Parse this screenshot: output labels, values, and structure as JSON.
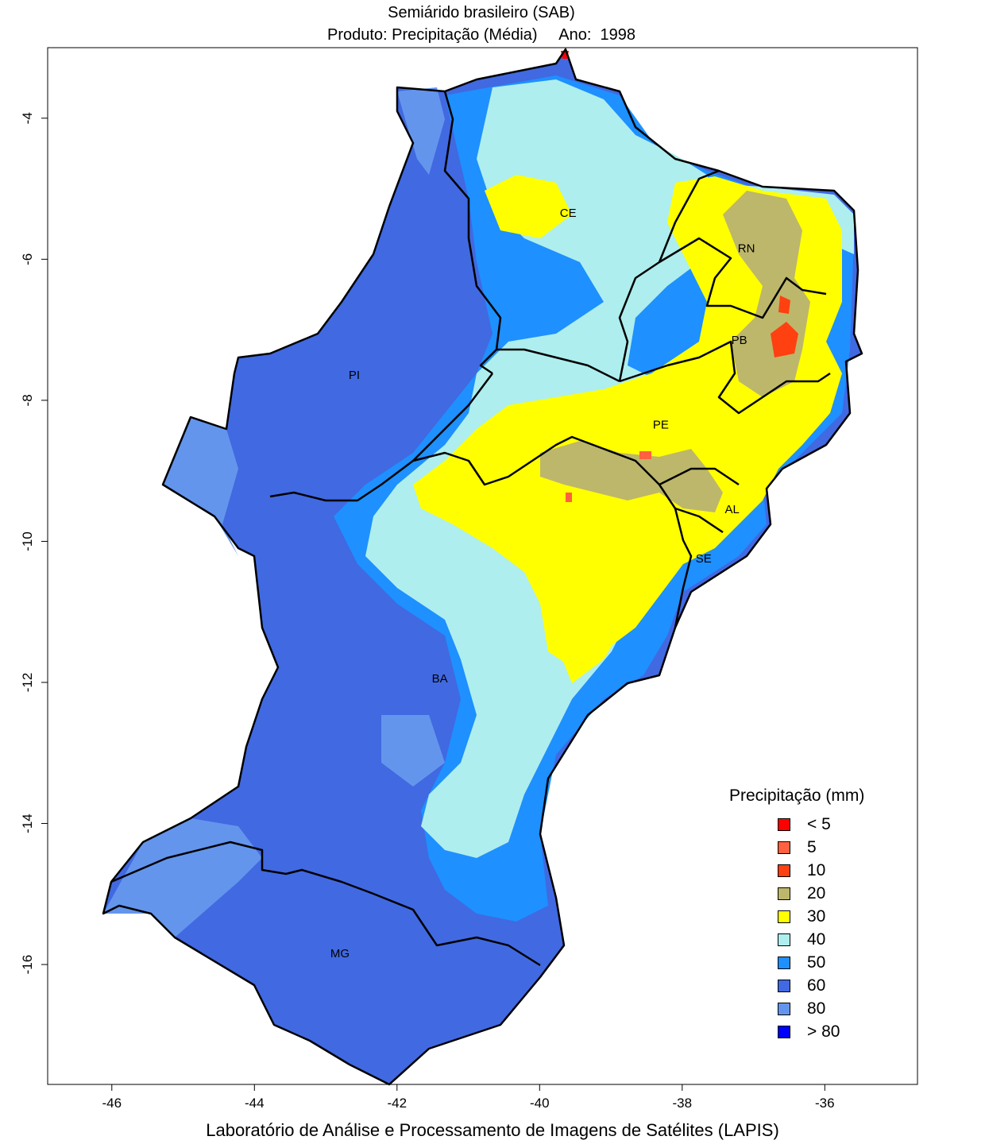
{
  "title": {
    "line1": "Semiárido brasileiro (SAB)",
    "line2_product": "Produto: Precipitação (Média)",
    "line2_year": "Ano:  1998"
  },
  "footer": "Laboratório de Análise e Processamento de Imagens de Satélites (LAPIS)",
  "axes": {
    "x_ticks": [
      "-46",
      "-44",
      "-42",
      "-40",
      "-38",
      "-36"
    ],
    "y_ticks": [
      "-4",
      "-6",
      "-8",
      "-10",
      "-12",
      "-14",
      "-16"
    ],
    "x_range": [
      -46.9,
      -34.7
    ],
    "y_range": [
      -17.7,
      -3.0
    ]
  },
  "states": [
    {
      "label": "CE",
      "lon": -39.6,
      "lat": -5.4
    },
    {
      "label": "RN",
      "lon": -37.1,
      "lat": -5.9
    },
    {
      "label": "PB",
      "lon": -37.2,
      "lat": -7.2
    },
    {
      "label": "PI",
      "lon": -42.6,
      "lat": -7.7
    },
    {
      "label": "PE",
      "lon": -38.3,
      "lat": -8.4
    },
    {
      "label": "AL",
      "lon": -37.3,
      "lat": -9.6
    },
    {
      "label": "SE",
      "lon": -37.7,
      "lat": -10.3
    },
    {
      "label": "BA",
      "lon": -41.4,
      "lat": -12.0
    },
    {
      "label": "MG",
      "lon": -42.8,
      "lat": -15.9
    }
  ],
  "legend": {
    "title": "Precipitação (mm)",
    "items": [
      {
        "label": "< 5",
        "color": "#ff0000"
      },
      {
        "label": "5",
        "color": "#ff6040"
      },
      {
        "label": "10",
        "color": "#ff4010"
      },
      {
        "label": "20",
        "color": "#bdb76b"
      },
      {
        "label": "30",
        "color": "#ffff00"
      },
      {
        "label": "40",
        "color": "#aeeeee"
      },
      {
        "label": "50",
        "color": "#1e90ff"
      },
      {
        "label": "60",
        "color": "#4169e1"
      },
      {
        "label": "80",
        "color": "#6495ed"
      },
      {
        "label": "> 80",
        "color": "#0000ff"
      }
    ]
  }
}
